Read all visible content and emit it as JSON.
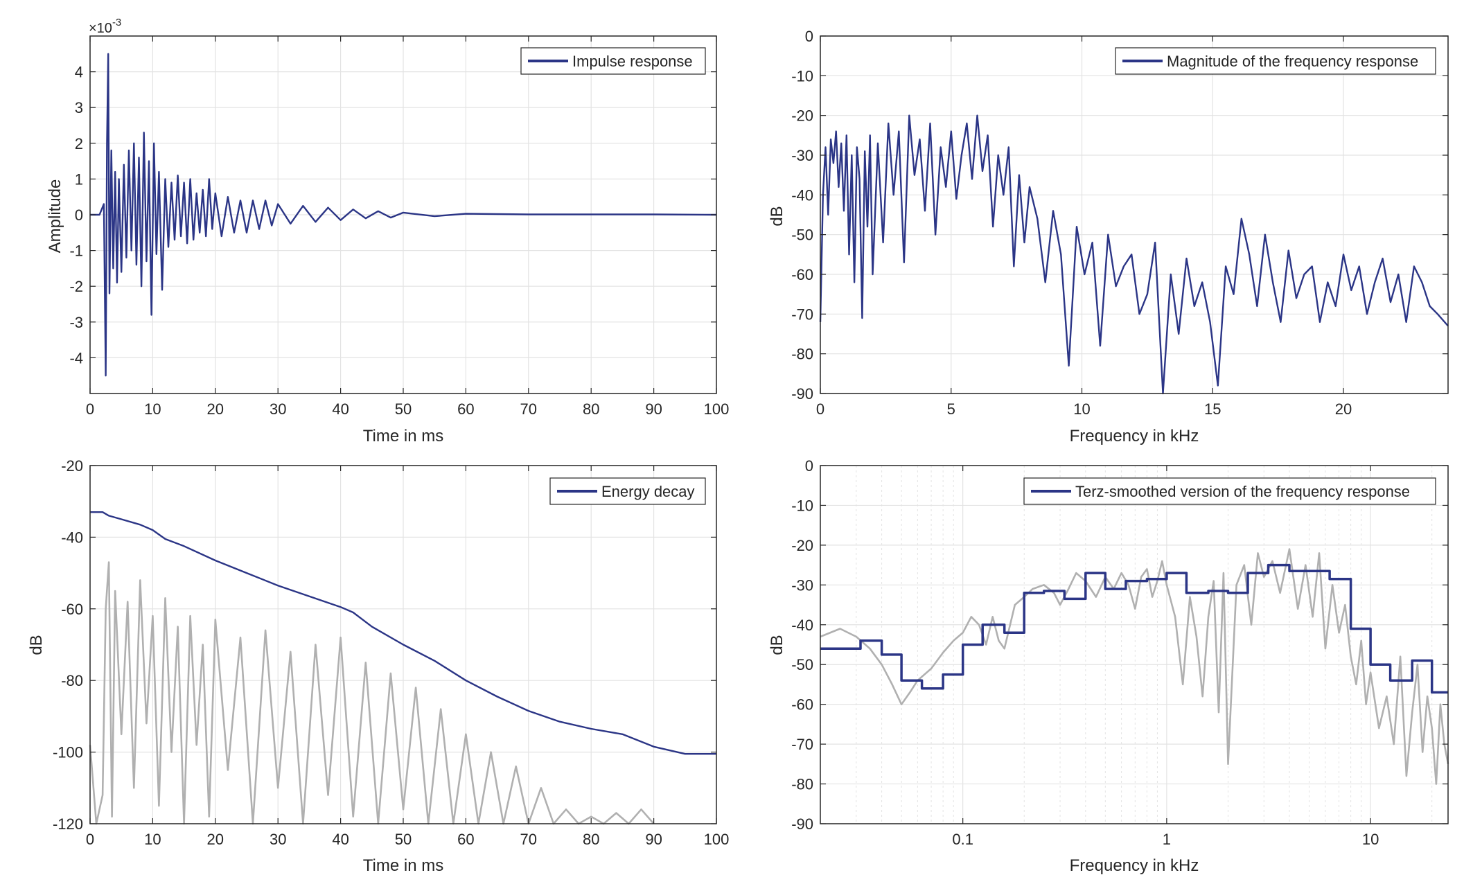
{
  "colors": {
    "series": "#2b3586",
    "secondary": "#b0b0b0",
    "grid": "#e3e3e3",
    "axis": "#262626"
  },
  "chart_data": [
    {
      "type": "line",
      "id": "impulse",
      "xlabel": "Time in ms",
      "ylabel": "Amplitude",
      "xlim": [
        0,
        100
      ],
      "ylim": [
        -5,
        5
      ],
      "y_multiplier_base": "×10",
      "y_multiplier_exp": "-3",
      "grid": true,
      "legend_position": "top-right",
      "xticks": [
        0,
        10,
        20,
        30,
        40,
        50,
        60,
        70,
        80,
        90,
        100
      ],
      "yticks": [
        -4,
        -3,
        -2,
        -1,
        0,
        1,
        2,
        3,
        4
      ],
      "series": [
        {
          "name": "Impulse response",
          "x": [
            0,
            1.5,
            2.2,
            2.5,
            2.7,
            2.9,
            3.1,
            3.4,
            3.7,
            4.0,
            4.3,
            4.6,
            5.0,
            5.4,
            5.8,
            6.2,
            6.6,
            7.0,
            7.4,
            7.8,
            8.2,
            8.6,
            9.0,
            9.4,
            9.8,
            10.2,
            10.6,
            11.0,
            11.5,
            12,
            12.5,
            13,
            13.5,
            14,
            14.5,
            15,
            15.5,
            16,
            16.5,
            17,
            17.5,
            18,
            18.5,
            19,
            19.5,
            20,
            21,
            22,
            23,
            24,
            25,
            26,
            27,
            28,
            29,
            30,
            32,
            34,
            36,
            38,
            40,
            42,
            44,
            46,
            48,
            50,
            55,
            60,
            70,
            80,
            90,
            100
          ],
          "y": [
            0,
            0,
            0.3,
            -4.5,
            2.0,
            4.5,
            -2.2,
            1.8,
            -1.5,
            1.2,
            -1.9,
            1.0,
            -1.6,
            1.4,
            -1.2,
            1.8,
            -1.0,
            2.0,
            -1.4,
            1.6,
            -2.0,
            2.3,
            -1.3,
            1.5,
            -2.8,
            2.0,
            -1.1,
            1.2,
            -2.1,
            1.0,
            -0.9,
            0.9,
            -0.7,
            1.1,
            -0.6,
            0.9,
            -0.8,
            1.0,
            -0.7,
            0.6,
            -0.5,
            0.7,
            -0.6,
            1.0,
            -0.4,
            0.6,
            -0.6,
            0.5,
            -0.5,
            0.4,
            -0.5,
            0.4,
            -0.4,
            0.4,
            -0.3,
            0.3,
            -0.25,
            0.25,
            -0.2,
            0.2,
            -0.15,
            0.15,
            -0.1,
            0.1,
            -0.08,
            0.06,
            -0.04,
            0.03,
            0.01,
            0.01,
            0.01,
            0
          ]
        }
      ]
    },
    {
      "type": "line",
      "id": "magnitude",
      "xlabel": "Frequency in kHz",
      "ylabel": "dB",
      "xlim": [
        0,
        24
      ],
      "ylim": [
        -90,
        0
      ],
      "grid": true,
      "legend_position": "top-right",
      "xticks": [
        0,
        5,
        10,
        15,
        20
      ],
      "yticks": [
        0,
        -10,
        -20,
        -30,
        -40,
        -50,
        -60,
        -70,
        -80,
        -90
      ],
      "series": [
        {
          "name": "Magnitude of the frequency response",
          "x": [
            0,
            0.1,
            0.2,
            0.3,
            0.4,
            0.5,
            0.6,
            0.7,
            0.8,
            0.9,
            1.0,
            1.1,
            1.2,
            1.3,
            1.4,
            1.5,
            1.6,
            1.7,
            1.8,
            1.9,
            2.0,
            2.2,
            2.4,
            2.6,
            2.8,
            3.0,
            3.2,
            3.4,
            3.6,
            3.8,
            4.0,
            4.2,
            4.4,
            4.6,
            4.8,
            5.0,
            5.2,
            5.4,
            5.6,
            5.8,
            6.0,
            6.2,
            6.4,
            6.6,
            6.8,
            7.0,
            7.2,
            7.4,
            7.6,
            7.8,
            8.0,
            8.3,
            8.6,
            8.9,
            9.2,
            9.5,
            9.8,
            10.1,
            10.4,
            10.7,
            11.0,
            11.3,
            11.6,
            11.9,
            12.2,
            12.5,
            12.8,
            13.1,
            13.4,
            13.7,
            14.0,
            14.3,
            14.6,
            14.9,
            15.2,
            15.5,
            15.8,
            16.1,
            16.4,
            16.7,
            17.0,
            17.3,
            17.6,
            17.9,
            18.2,
            18.5,
            18.8,
            19.1,
            19.4,
            19.7,
            20.0,
            20.3,
            20.6,
            20.9,
            21.2,
            21.5,
            21.8,
            22.1,
            22.4,
            22.7,
            23.0,
            23.3,
            23.6,
            24.0
          ],
          "y": [
            -72,
            -40,
            -28,
            -45,
            -26,
            -32,
            -24,
            -38,
            -27,
            -44,
            -25,
            -55,
            -30,
            -62,
            -28,
            -36,
            -71,
            -29,
            -48,
            -25,
            -60,
            -27,
            -52,
            -22,
            -40,
            -24,
            -57,
            -20,
            -35,
            -26,
            -44,
            -22,
            -50,
            -28,
            -38,
            -24,
            -41,
            -30,
            -22,
            -36,
            -20,
            -34,
            -25,
            -48,
            -30,
            -40,
            -28,
            -58,
            -35,
            -52,
            -38,
            -46,
            -62,
            -44,
            -55,
            -83,
            -48,
            -60,
            -52,
            -78,
            -50,
            -63,
            -58,
            -55,
            -70,
            -65,
            -52,
            -90,
            -60,
            -75,
            -56,
            -68,
            -62,
            -72,
            -88,
            -58,
            -65,
            -46,
            -55,
            -68,
            -50,
            -62,
            -72,
            -54,
            -66,
            -60,
            -58,
            -72,
            -62,
            -68,
            -55,
            -64,
            -58,
            -70,
            -62,
            -56,
            -67,
            -60,
            -72,
            -58,
            -62,
            -68,
            -70,
            -73
          ]
        }
      ]
    },
    {
      "type": "line",
      "id": "decay",
      "xlabel": "Time in ms",
      "ylabel": "dB",
      "xlim": [
        0,
        100
      ],
      "ylim": [
        -120,
        -20
      ],
      "grid": true,
      "legend_position": "top-right",
      "xticks": [
        0,
        10,
        20,
        30,
        40,
        50,
        60,
        70,
        80,
        90,
        100
      ],
      "yticks": [
        -20,
        -40,
        -60,
        -80,
        -100,
        -120
      ],
      "series": [
        {
          "name": "Energy decay",
          "x": [
            0,
            2,
            3,
            5,
            8,
            10,
            12,
            15,
            20,
            25,
            30,
            35,
            40,
            42,
            45,
            50,
            55,
            60,
            65,
            70,
            75,
            80,
            85,
            90,
            95,
            100
          ],
          "y": [
            -33,
            -33,
            -34,
            -35,
            -36.5,
            -38,
            -40.5,
            -42.5,
            -46.5,
            -50,
            -53.5,
            -56.5,
            -59.5,
            -61,
            -65,
            -70,
            -74.5,
            -80,
            -84.5,
            -88.5,
            -91.5,
            -93.5,
            -95,
            -98.5,
            -100.5,
            -100.5
          ]
        },
        {
          "x": [
            0,
            1,
            2,
            2.5,
            3,
            3.5,
            4,
            5,
            6,
            7,
            8,
            9,
            10,
            11,
            12,
            13,
            14,
            15,
            16,
            17,
            18,
            19,
            20,
            22,
            24,
            26,
            28,
            30,
            32,
            34,
            36,
            38,
            40,
            42,
            44,
            46,
            48,
            50,
            52,
            54,
            56,
            58,
            60,
            62,
            64,
            66,
            68,
            70,
            72,
            74,
            76,
            78,
            80,
            82,
            84,
            86,
            88,
            90
          ],
          "y": [
            -98,
            -120,
            -112,
            -60,
            -47,
            -118,
            -55,
            -95,
            -58,
            -110,
            -52,
            -92,
            -62,
            -115,
            -57,
            -100,
            -65,
            -120,
            -62,
            -98,
            -70,
            -118,
            -63,
            -105,
            -68,
            -120,
            -66,
            -110,
            -72,
            -120,
            -70,
            -112,
            -68,
            -118,
            -75,
            -120,
            -78,
            -116,
            -82,
            -120,
            -88,
            -120,
            -95,
            -120,
            -100,
            -120,
            -104,
            -120,
            -110,
            -120,
            -116,
            -120,
            -118,
            -120,
            -117,
            -120,
            -116,
            -120
          ]
        }
      ]
    },
    {
      "type": "line",
      "id": "terz",
      "xlabel": "Frequency in kHz",
      "ylabel": "dB",
      "xscale": "log",
      "xlim": [
        0.02,
        24
      ],
      "ylim": [
        -90,
        0
      ],
      "grid": true,
      "legend_position": "top-right",
      "xticks": [
        0.1,
        1,
        10
      ],
      "xticklabels": [
        "0.1",
        "1",
        "10"
      ],
      "yticks": [
        0,
        -10,
        -20,
        -30,
        -40,
        -50,
        -60,
        -70,
        -80,
        -90
      ],
      "series": [
        {
          "name": "Terz-smoothed version of the frequency response",
          "step": true,
          "x": [
            0.02,
            0.0315,
            0.04,
            0.05,
            0.063,
            0.08,
            0.1,
            0.125,
            0.16,
            0.2,
            0.25,
            0.315,
            0.4,
            0.5,
            0.63,
            0.8,
            1.0,
            1.25,
            1.6,
            2.0,
            2.5,
            3.15,
            4.0,
            5.0,
            6.3,
            8.0,
            10.0,
            12.5,
            16.0,
            20.0,
            24.0
          ],
          "y": [
            -46,
            -44,
            -47.5,
            -54,
            -56,
            -52.5,
            -45,
            -40,
            -42,
            -32,
            -31.5,
            -33.5,
            -27,
            -31,
            -29,
            -28.5,
            -27,
            -32,
            -31.5,
            -32,
            -27,
            -25,
            -26.5,
            -26.5,
            -28.5,
            -41,
            -50,
            -54,
            -49,
            -57,
            -57
          ]
        },
        {
          "x": [
            0.02,
            0.025,
            0.03,
            0.035,
            0.04,
            0.045,
            0.05,
            0.055,
            0.06,
            0.07,
            0.08,
            0.09,
            0.1,
            0.11,
            0.12,
            0.13,
            0.14,
            0.15,
            0.16,
            0.18,
            0.2,
            0.22,
            0.25,
            0.28,
            0.3,
            0.33,
            0.36,
            0.4,
            0.45,
            0.5,
            0.55,
            0.6,
            0.65,
            0.7,
            0.75,
            0.8,
            0.85,
            0.9,
            0.95,
            1.0,
            1.1,
            1.2,
            1.3,
            1.4,
            1.5,
            1.6,
            1.7,
            1.8,
            1.9,
            2.0,
            2.2,
            2.4,
            2.6,
            2.8,
            3.0,
            3.3,
            3.6,
            4.0,
            4.4,
            4.8,
            5.2,
            5.6,
            6.0,
            6.5,
            7.0,
            7.5,
            8.0,
            8.5,
            9.0,
            9.5,
            10.0,
            11.0,
            12.0,
            13.0,
            14.0,
            15.0,
            16.0,
            17.0,
            18.0,
            19.0,
            20.0,
            21.0,
            22.0,
            23.0,
            24.0
          ],
          "y": [
            -43,
            -41,
            -43,
            -46,
            -50,
            -55,
            -60,
            -57,
            -54,
            -51,
            -47,
            -44,
            -42,
            -38,
            -40,
            -45,
            -38,
            -44,
            -46,
            -35,
            -33,
            -31,
            -30,
            -32,
            -35,
            -31,
            -27,
            -29,
            -33,
            -28,
            -31,
            -27,
            -30,
            -36,
            -28,
            -26,
            -33,
            -29,
            -24,
            -30,
            -38,
            -55,
            -33,
            -43,
            -58,
            -38,
            -29,
            -62,
            -27,
            -75,
            -30,
            -25,
            -40,
            -22,
            -28,
            -24,
            -32,
            -21,
            -36,
            -25,
            -38,
            -22,
            -46,
            -30,
            -42,
            -35,
            -48,
            -55,
            -44,
            -60,
            -52,
            -66,
            -58,
            -70,
            -48,
            -78,
            -62,
            -50,
            -72,
            -58,
            -66,
            -80,
            -60,
            -70,
            -75
          ]
        }
      ]
    }
  ]
}
